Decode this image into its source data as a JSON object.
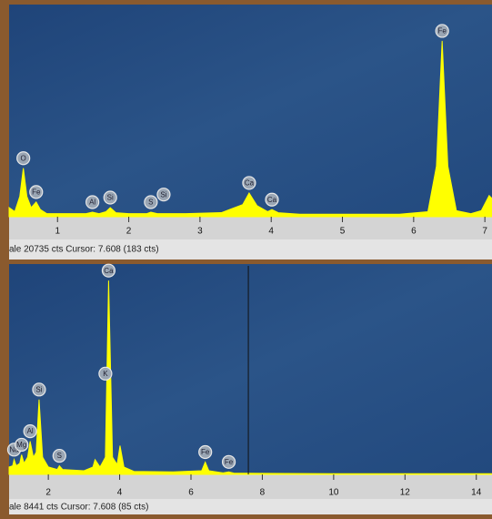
{
  "chart_data": [
    {
      "type": "area",
      "status": "ale 20735 cts Cursor: 7.608 (183 cts)",
      "color": "#ffff00",
      "x": [
        0.32,
        0.4,
        0.47,
        0.52,
        0.57,
        0.63,
        0.7,
        0.76,
        0.85,
        1.0,
        1.4,
        1.49,
        1.58,
        1.68,
        1.74,
        1.82,
        2.0,
        2.25,
        2.31,
        2.4,
        2.8,
        3.3,
        3.6,
        3.69,
        3.8,
        3.95,
        4.01,
        4.1,
        4.4,
        5.0,
        5.8,
        6.2,
        6.32,
        6.4,
        6.48,
        6.6,
        6.8,
        6.95,
        7.06,
        7.1
      ],
      "values": [
        900,
        500,
        2000,
        4800,
        2000,
        900,
        1450,
        700,
        300,
        300,
        300,
        450,
        300,
        500,
        900,
        400,
        300,
        300,
        450,
        300,
        300,
        400,
        1200,
        2350,
        1100,
        500,
        700,
        400,
        250,
        250,
        250,
        500,
        5000,
        17400,
        5000,
        600,
        300,
        600,
        2100,
        1800
      ],
      "xlim": [
        0.32,
        7.1
      ],
      "ylim": [
        0,
        21000
      ],
      "xticks": [
        1,
        2,
        3,
        4,
        5,
        6,
        7
      ],
      "labels": [
        {
          "text": "O",
          "x": 0.52,
          "y": 4800
        },
        {
          "text": "Fe",
          "x": 0.7,
          "y": 1450
        },
        {
          "text": "Al",
          "x": 1.49,
          "y": 450
        },
        {
          "text": "Si",
          "x": 1.74,
          "y": 900
        },
        {
          "text": "S",
          "x": 2.31,
          "y": 450
        },
        {
          "text": "Si",
          "x": 2.49,
          "y": 1200
        },
        {
          "text": "Ca",
          "x": 3.69,
          "y": 2350
        },
        {
          "text": "Ca",
          "x": 4.01,
          "y": 700
        },
        {
          "text": "Fe",
          "x": 6.4,
          "y": 17400
        }
      ]
    },
    {
      "type": "area",
      "status": "ale 8441 cts Cursor: 7.608 (85 cts)",
      "color": "#ffff00",
      "cursor": 7.608,
      "x": [
        0.9,
        1.0,
        1.04,
        1.1,
        1.2,
        1.25,
        1.32,
        1.42,
        1.49,
        1.58,
        1.66,
        1.74,
        1.84,
        2.0,
        2.25,
        2.31,
        2.4,
        3.0,
        3.25,
        3.31,
        3.45,
        3.6,
        3.69,
        3.8,
        3.93,
        4.01,
        4.12,
        4.4,
        5.5,
        6.3,
        6.4,
        6.5,
        6.9,
        7.06,
        7.2,
        8.0,
        10.0,
        12.0,
        14.44
      ],
      "values": [
        300,
        350,
        600,
        350,
        450,
        800,
        450,
        700,
        1350,
        700,
        900,
        3050,
        700,
        300,
        200,
        350,
        200,
        150,
        300,
        600,
        300,
        700,
        7900,
        700,
        400,
        1170,
        300,
        120,
        100,
        150,
        500,
        150,
        60,
        100,
        50,
        40,
        30,
        30,
        30
      ],
      "xlim": [
        0.9,
        14.44
      ],
      "ylim": [
        0,
        8500
      ],
      "xticks": [
        2,
        4,
        6,
        8,
        10,
        12,
        14
      ],
      "labels": [
        {
          "text": "Na",
          "x": 1.04,
          "y": 600
        },
        {
          "text": "Mg",
          "x": 1.25,
          "y": 800
        },
        {
          "text": "Al",
          "x": 1.49,
          "y": 1350
        },
        {
          "text": "Si",
          "x": 1.74,
          "y": 3050
        },
        {
          "text": "S",
          "x": 2.31,
          "y": 350
        },
        {
          "text": "K",
          "x": 3.6,
          "y": 3700
        },
        {
          "text": "Ca",
          "x": 3.69,
          "y": 7900
        },
        {
          "text": "Fe",
          "x": 6.4,
          "y": 500
        },
        {
          "text": "Fe",
          "x": 7.06,
          "y": 100
        }
      ]
    }
  ]
}
